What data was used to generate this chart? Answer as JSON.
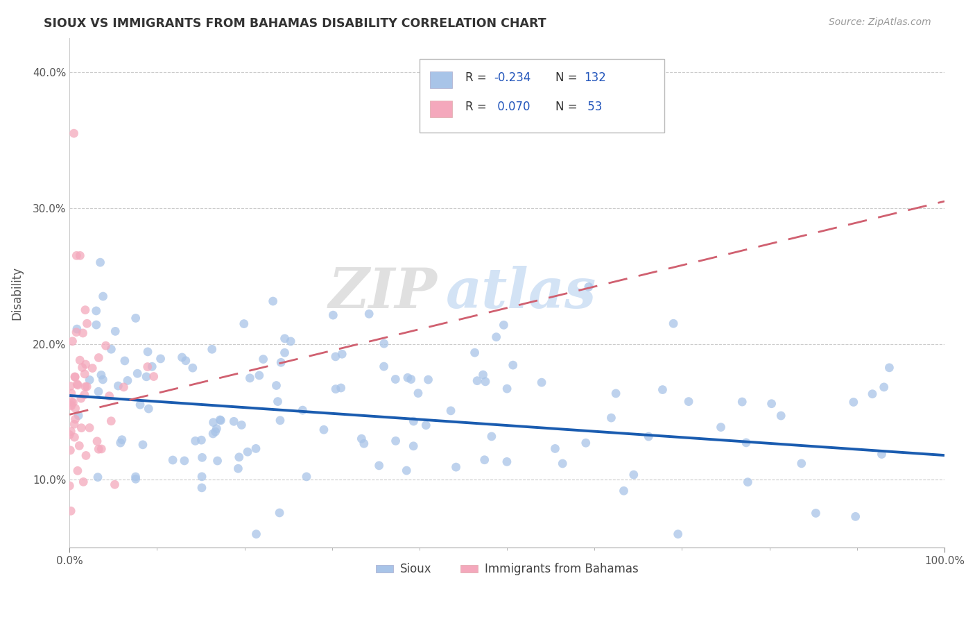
{
  "title": "SIOUX VS IMMIGRANTS FROM BAHAMAS DISABILITY CORRELATION CHART",
  "source": "Source: ZipAtlas.com",
  "ylabel": "Disability",
  "x_min": 0.0,
  "x_max": 1.0,
  "y_min": 0.05,
  "y_max": 0.425,
  "y_ticks": [
    0.1,
    0.2,
    0.3,
    0.4
  ],
  "y_tick_labels": [
    "10.0%",
    "20.0%",
    "30.0%",
    "40.0%"
  ],
  "blue_color": "#A8C4E8",
  "pink_color": "#F4A8BC",
  "blue_line_color": "#1A5CB0",
  "pink_line_color": "#D06070",
  "watermark_zip": "ZIP",
  "watermark_atlas": "atlas",
  "legend_label1": "Sioux",
  "legend_label2": "Immigrants from Bahamas",
  "blue_trend_x0": 0.0,
  "blue_trend_y0": 0.162,
  "blue_trend_x1": 1.0,
  "blue_trend_y1": 0.118,
  "pink_trend_x0": 0.0,
  "pink_trend_y0": 0.148,
  "pink_trend_x1": 1.0,
  "pink_trend_y1": 0.305
}
